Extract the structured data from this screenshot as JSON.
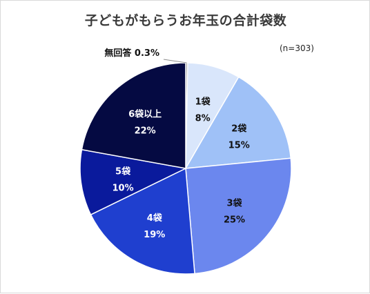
{
  "chart_data": {
    "type": "pie",
    "title": "子どもがもらうお年玉の合計袋数",
    "note": "(n=303)",
    "start": "12 o'clock",
    "direction": "clockwise",
    "slices": [
      {
        "label": "無回答",
        "value": 0.3,
        "pct_label": "0.3%",
        "color": "#a6a6a6",
        "text_color": "#111111"
      },
      {
        "label": "1袋",
        "value": 8,
        "pct_label": "8%",
        "color": "#d9e6fb",
        "text_color": "#111111"
      },
      {
        "label": "2袋",
        "value": 15,
        "pct_label": "15%",
        "color": "#9fc1f7",
        "text_color": "#111111"
      },
      {
        "label": "3袋",
        "value": 25,
        "pct_label": "25%",
        "color": "#6b87ee",
        "text_color": "#111111"
      },
      {
        "label": "4袋",
        "value": 19,
        "pct_label": "19%",
        "color": "#1f3fcf",
        "text_color": "#ffffff"
      },
      {
        "label": "5袋",
        "value": 10,
        "pct_label": "10%",
        "color": "#0a1a9c",
        "text_color": "#ffffff"
      },
      {
        "label": "6袋以上",
        "value": 22,
        "pct_label": "22%",
        "color": "#050a42",
        "text_color": "#ffffff"
      }
    ]
  }
}
